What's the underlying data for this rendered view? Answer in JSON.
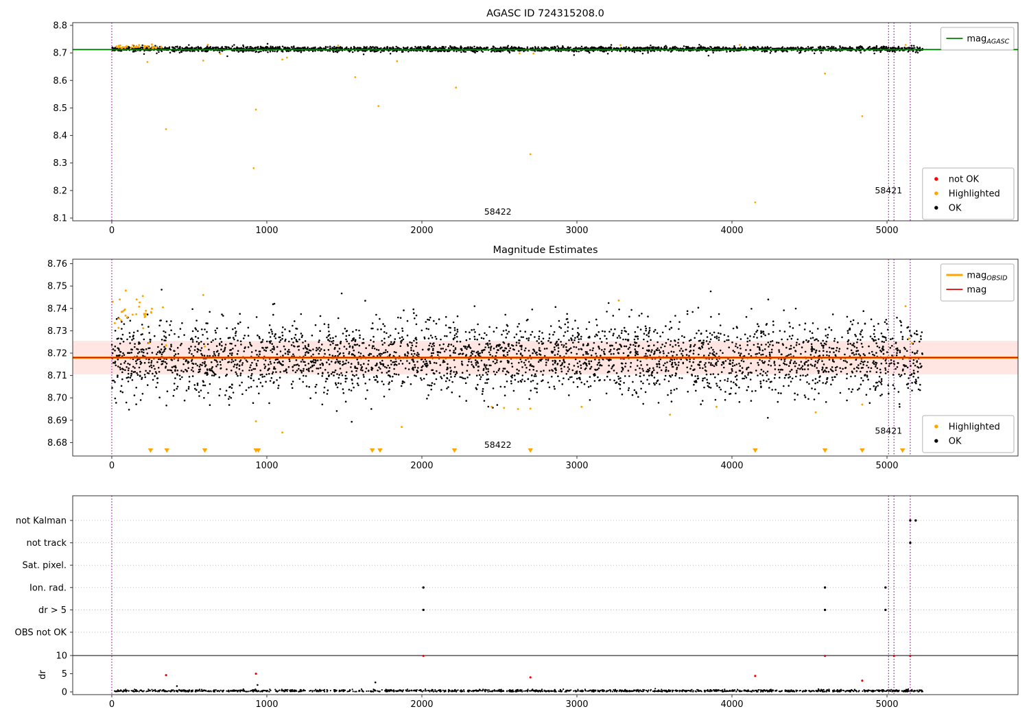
{
  "chart_data": [
    {
      "type": "scatter",
      "title": "AGASC ID 724315208.0",
      "xlim": [
        -252,
        5845
      ],
      "ylim": [
        8.09,
        8.81
      ],
      "xticks": [
        0,
        1000,
        2000,
        3000,
        4000,
        5000
      ],
      "yticks": [
        8.1,
        8.2,
        8.3,
        8.4,
        8.5,
        8.6,
        8.7,
        8.8
      ],
      "ytick_labels": [
        "8.1",
        "8.2",
        "8.3",
        "8.4",
        "8.5",
        "8.6",
        "8.7",
        "8.8"
      ],
      "hlines": [
        {
          "name": "mag_AGASC",
          "y": 8.712,
          "color": "#007f00",
          "width": 1.8
        }
      ],
      "vlines": {
        "xs": [
          0,
          5010,
          5045,
          5150
        ],
        "color": "#800080"
      },
      "legend_top": {
        "entries": [
          {
            "marker": "line",
            "color": "#007f00",
            "width": 1.8,
            "label": "mag",
            "sub": "AGASC"
          }
        ]
      },
      "legend_bottom": {
        "entries": [
          {
            "marker": "dot",
            "color": "#ff0000",
            "label": "not OK"
          },
          {
            "marker": "dot",
            "color": "#ffa500",
            "label": "Highlighted"
          },
          {
            "marker": "dot",
            "color": "#000000",
            "label": "OK"
          }
        ]
      },
      "annotations": [
        {
          "text": "58422",
          "x": 2490,
          "y": 8.112
        },
        {
          "text": "58421",
          "x": 5010,
          "y": 8.19
        }
      ],
      "ok": {
        "color": "#000000",
        "r": 1.25,
        "clusters": [
          {
            "n": 2600,
            "x": [
              0,
              5230
            ],
            "mean": 8.714,
            "sd": 0.0042,
            "clip": [
              8.7,
              8.728
            ],
            "seed": 101
          },
          {
            "n": 220,
            "x": [
              0,
              5230
            ],
            "mean": 8.712,
            "sd": 0.009,
            "clip": [
              8.687,
              8.745
            ],
            "seed": 102
          }
        ]
      },
      "highlighted": {
        "color": "#ffa500",
        "r": 1.4,
        "clusters": [
          {
            "n": 42,
            "x": [
              5,
              330
            ],
            "mean": 8.722,
            "sd": 0.0035,
            "clip": [
              8.712,
              8.733
            ],
            "seed": 103
          }
        ],
        "points": [
          [
            350,
            8.423
          ],
          [
            915,
            8.281
          ],
          [
            930,
            8.494
          ],
          [
            1570,
            8.612
          ],
          [
            1720,
            8.507
          ],
          [
            1840,
            8.67
          ],
          [
            2220,
            8.574
          ],
          [
            2700,
            8.332
          ],
          [
            4150,
            8.157
          ],
          [
            4600,
            8.625
          ],
          [
            4840,
            8.47
          ],
          [
            230,
            8.667
          ],
          [
            590,
            8.672
          ],
          [
            700,
            8.697
          ],
          [
            1100,
            8.676
          ],
          [
            1130,
            8.683
          ],
          [
            2630,
            8.699
          ],
          [
            2720,
            8.698
          ],
          [
            3280,
            8.728
          ],
          [
            4050,
            8.729
          ],
          [
            5120,
            8.729
          ],
          [
            620,
            8.73
          ],
          [
            1460,
            8.727
          ]
        ]
      }
    },
    {
      "type": "scatter",
      "title": "Magnitude Estimates",
      "xlim": [
        -252,
        5845
      ],
      "ylim": [
        8.674,
        8.762
      ],
      "xticks": [
        0,
        1000,
        2000,
        3000,
        4000,
        5000
      ],
      "yticks": [
        8.68,
        8.69,
        8.7,
        8.71,
        8.72,
        8.73,
        8.74,
        8.75,
        8.76
      ],
      "ytick_labels": [
        "8.68",
        "8.69",
        "8.70",
        "8.71",
        "8.72",
        "8.73",
        "8.74",
        "8.75",
        "8.76"
      ],
      "band": {
        "y0": 8.7105,
        "y1": 8.7255,
        "color": "rgba(255,90,60,0.15)"
      },
      "hlines": [
        {
          "name": "mag_OBSID",
          "y": 8.718,
          "color": "#ffa500",
          "width": 3
        },
        {
          "name": "mag",
          "y": 8.718,
          "color": "#e60000",
          "width": 1.7
        }
      ],
      "vlines": {
        "xs": [
          0,
          5010,
          5045,
          5150
        ],
        "color": "#800080"
      },
      "legend_top": {
        "entries": [
          {
            "marker": "line",
            "color": "#ffa500",
            "width": 3,
            "label": "mag",
            "sub": "OBSID"
          },
          {
            "marker": "line",
            "color": "#e60000",
            "width": 1.7,
            "label": "mag"
          }
        ]
      },
      "legend_bottom": {
        "entries": [
          {
            "marker": "dot",
            "color": "#ffa500",
            "label": "Highlighted"
          },
          {
            "marker": "dot",
            "color": "#000000",
            "label": "OK"
          }
        ]
      },
      "annotations": [
        {
          "text": "58422",
          "x": 2490,
          "y": 8.6777
        },
        {
          "text": "58421",
          "x": 5010,
          "y": 8.684
        }
      ],
      "ok": {
        "color": "#000000",
        "r": 1.3,
        "clusters": [
          {
            "n": 3000,
            "x": [
              0,
              5230
            ],
            "mean": 8.7178,
            "sd": 0.008,
            "clip": [
              8.696,
              8.74
            ],
            "seed": 201
          },
          {
            "n": 260,
            "x": [
              0,
              5230
            ],
            "mean": 8.7178,
            "sd": 0.0125,
            "clip": [
              8.684,
              8.7485
            ],
            "seed": 202
          }
        ]
      },
      "highlighted": {
        "color": "#ffa500",
        "r": 1.5,
        "clusters": [
          {
            "n": 26,
            "x": [
              5,
              260
            ],
            "mean": 8.737,
            "sd": 0.0045,
            "clip": [
              8.728,
              8.7495
            ],
            "seed": 203
          }
        ],
        "points": [
          [
            90,
            8.748
          ],
          [
            160,
            8.744
          ],
          [
            200,
            8.7455
          ],
          [
            590,
            8.746
          ],
          [
            330,
            8.7405
          ],
          [
            3270,
            8.7435
          ],
          [
            5120,
            8.741
          ],
          [
            930,
            8.6895
          ],
          [
            1100,
            8.6845
          ],
          [
            1870,
            8.687
          ],
          [
            2450,
            8.696
          ],
          [
            2530,
            8.6955
          ],
          [
            2620,
            8.695
          ],
          [
            2700,
            8.6952
          ],
          [
            3030,
            8.696
          ],
          [
            3600,
            8.6925
          ],
          [
            3900,
            8.696
          ],
          [
            4540,
            8.6935
          ],
          [
            4840,
            8.697
          ],
          [
            5140,
            8.7265
          ],
          [
            5160,
            8.7245
          ],
          [
            240,
            8.7245
          ],
          [
            350,
            8.7235
          ],
          [
            600,
            8.723
          ]
        ]
      },
      "triangles": {
        "y": 8.6765,
        "color": "#ffa500",
        "xs": [
          250,
          355,
          600,
          930,
          945,
          1680,
          1730,
          2210,
          2700,
          4150,
          4600,
          4840,
          5100
        ]
      }
    },
    {
      "type": "flags",
      "xlim": [
        -252,
        5845
      ],
      "xticks": [
        0,
        1000,
        2000,
        3000,
        4000,
        5000
      ],
      "vlines": {
        "xs": [
          0,
          5010,
          5045,
          5150
        ],
        "color": "#800080"
      },
      "flag_rows": [
        "not Kalman",
        "not track",
        "Sat. pixel.",
        "Ion. rad.",
        "dr > 5",
        "OBS not OK"
      ],
      "flag_points": [
        {
          "row": "Ion. rad.",
          "xs": [
            2010,
            4600,
            4990
          ]
        },
        {
          "row": "dr > 5",
          "xs": [
            2010,
            4600,
            4990
          ]
        },
        {
          "row": "not Kalman",
          "xs": [
            5150,
            5185
          ]
        },
        {
          "row": "not track",
          "xs": [
            5150
          ]
        }
      ],
      "dr": {
        "axis_label": "dr",
        "ticks": [
          0,
          5,
          10
        ],
        "tick_labels": [
          "0",
          "5",
          "10"
        ],
        "hline_y": 10,
        "ok": {
          "color": "#000000",
          "n": 1400,
          "x": [
            0,
            5230
          ],
          "mean": 0.28,
          "sd": 0.17,
          "clip": [
            0.03,
            1.4
          ],
          "seed": 301,
          "extra": [
            [
              1700,
              2.6
            ],
            [
              940,
              1.9
            ],
            [
              420,
              1.6
            ]
          ]
        },
        "not_ok": {
          "color": "#ff0000",
          "points": [
            [
              350,
              4.6
            ],
            [
              930,
              5.0
            ],
            [
              2010,
              9.9
            ],
            [
              2700,
              4.0
            ],
            [
              4150,
              4.4
            ],
            [
              4600,
              9.9
            ],
            [
              4840,
              3.1
            ],
            [
              5045,
              9.9
            ],
            [
              5150,
              9.9
            ]
          ]
        }
      }
    }
  ]
}
